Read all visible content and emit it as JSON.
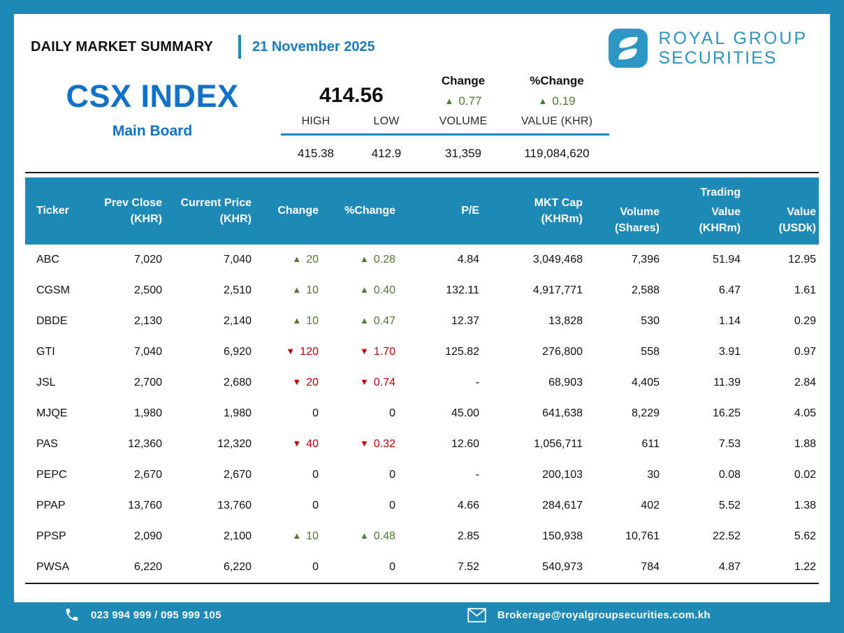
{
  "header": {
    "title": "DAILY MARKET SUMMARY",
    "date": "21 November 2025",
    "brand_line1": "ROYAL GROUP",
    "brand_line2": "SECURITIES"
  },
  "index": {
    "name": "CSX INDEX",
    "board": "Main Board",
    "value": "414.56",
    "change_label": "Change",
    "pct_change_label": "%Change",
    "change_value": "0.77",
    "pct_change_value": "0.19",
    "stats": {
      "headers": [
        "HIGH",
        "LOW",
        "VOLUME",
        "VALUE (KHR)"
      ],
      "values": [
        "415.38",
        "412.9",
        "31,359",
        "119,084,620"
      ]
    }
  },
  "table": {
    "cols": [
      {
        "label": "Ticker",
        "sub": ""
      },
      {
        "label": "Prev Close",
        "sub": "(KHR)"
      },
      {
        "label": "Current Price",
        "sub": "(KHR)"
      },
      {
        "label": "Change",
        "sub": ""
      },
      {
        "label": "%Change",
        "sub": ""
      },
      {
        "label": "P/E",
        "sub": ""
      },
      {
        "label": "MKT Cap",
        "sub": "(KHRm)"
      },
      {
        "label": "Volume",
        "sub": "(Shares)"
      },
      {
        "top": "Trading",
        "label": "Value",
        "sub": "(KHRm)"
      },
      {
        "label": "Value",
        "sub": "(USDk)"
      }
    ],
    "rows": [
      {
        "ticker": "ABC",
        "prev_close": "7,020",
        "current_price": "7,040",
        "change": {
          "dir": "up",
          "text": "20"
        },
        "pct_change": {
          "dir": "up",
          "text": "0.28"
        },
        "pe": "4.84",
        "mkt_cap": "3,049,468",
        "volume": "7,396",
        "trading_value": "51.94",
        "value_usd": "12.95"
      },
      {
        "ticker": "CGSM",
        "prev_close": "2,500",
        "current_price": "2,510",
        "change": {
          "dir": "up",
          "text": "10"
        },
        "pct_change": {
          "dir": "up",
          "text": "0.40"
        },
        "pe": "132.11",
        "mkt_cap": "4,917,771",
        "volume": "2,588",
        "trading_value": "6.47",
        "value_usd": "1.61"
      },
      {
        "ticker": "DBDE",
        "prev_close": "2,130",
        "current_price": "2,140",
        "change": {
          "dir": "up",
          "text": "10"
        },
        "pct_change": {
          "dir": "up",
          "text": "0.47"
        },
        "pe": "12.37",
        "mkt_cap": "13,828",
        "volume": "530",
        "trading_value": "1.14",
        "value_usd": "0.29"
      },
      {
        "ticker": "GTI",
        "prev_close": "7,040",
        "current_price": "6,920",
        "change": {
          "dir": "down",
          "text": "120"
        },
        "pct_change": {
          "dir": "down",
          "text": "1.70"
        },
        "pe": "125.82",
        "mkt_cap": "276,800",
        "volume": "558",
        "trading_value": "3.91",
        "value_usd": "0.97"
      },
      {
        "ticker": "JSL",
        "prev_close": "2,700",
        "current_price": "2,680",
        "change": {
          "dir": "down",
          "text": "20"
        },
        "pct_change": {
          "dir": "down",
          "text": "0.74"
        },
        "pe": "-",
        "mkt_cap": "68,903",
        "volume": "4,405",
        "trading_value": "11.39",
        "value_usd": "2.84"
      },
      {
        "ticker": "MJQE",
        "prev_close": "1,980",
        "current_price": "1,980",
        "change": {
          "dir": "flat",
          "text": "0"
        },
        "pct_change": {
          "dir": "flat",
          "text": "0"
        },
        "pe": "45.00",
        "mkt_cap": "641,638",
        "volume": "8,229",
        "trading_value": "16.25",
        "value_usd": "4.05"
      },
      {
        "ticker": "PAS",
        "prev_close": "12,360",
        "current_price": "12,320",
        "change": {
          "dir": "down",
          "text": "40"
        },
        "pct_change": {
          "dir": "down",
          "text": "0.32"
        },
        "pe": "12.60",
        "mkt_cap": "1,056,711",
        "volume": "611",
        "trading_value": "7.53",
        "value_usd": "1.88"
      },
      {
        "ticker": "PEPC",
        "prev_close": "2,670",
        "current_price": "2,670",
        "change": {
          "dir": "flat",
          "text": "0"
        },
        "pct_change": {
          "dir": "flat",
          "text": "0"
        },
        "pe": "-",
        "mkt_cap": "200,103",
        "volume": "30",
        "trading_value": "0.08",
        "value_usd": "0.02"
      },
      {
        "ticker": "PPAP",
        "prev_close": "13,760",
        "current_price": "13,760",
        "change": {
          "dir": "flat",
          "text": "0"
        },
        "pct_change": {
          "dir": "flat",
          "text": "0"
        },
        "pe": "4.66",
        "mkt_cap": "284,617",
        "volume": "402",
        "trading_value": "5.52",
        "value_usd": "1.38"
      },
      {
        "ticker": "PPSP",
        "prev_close": "2,090",
        "current_price": "2,100",
        "change": {
          "dir": "up",
          "text": "10"
        },
        "pct_change": {
          "dir": "up",
          "text": "0.48"
        },
        "pe": "2.85",
        "mkt_cap": "150,938",
        "volume": "10,761",
        "trading_value": "22.52",
        "value_usd": "5.62"
      },
      {
        "ticker": "PWSA",
        "prev_close": "6,220",
        "current_price": "6,220",
        "change": {
          "dir": "flat",
          "text": "0"
        },
        "pct_change": {
          "dir": "flat",
          "text": "0"
        },
        "pe": "7.52",
        "mkt_cap": "540,973",
        "volume": "784",
        "trading_value": "4.87",
        "value_usd": "1.22"
      }
    ]
  },
  "footer": {
    "phone": "023 994 999 / 095 999 105",
    "email": "Brokerage@royalgroupsecurities.com.kh"
  },
  "glyphs": {
    "up_triangle": "▲",
    "down_triangle": "▼"
  },
  "colors": {
    "frame_blue": "#1E89B7",
    "index_blue": "#1272C8",
    "brand_blue": "#2E93BF",
    "up_green": "#4F7A33",
    "down_red": "#C00000"
  }
}
